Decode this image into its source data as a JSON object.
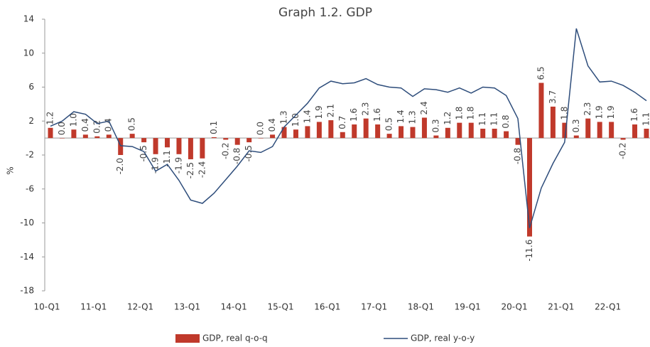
{
  "chart_data": {
    "type": "bar_line",
    "title": "Graph 1.2. GDP",
    "ylabel": "%",
    "categories": [
      "10-Q1",
      null,
      null,
      null,
      "11-Q1",
      null,
      null,
      null,
      "12-Q1",
      null,
      null,
      null,
      "13-Q1",
      null,
      null,
      null,
      "14-Q1",
      null,
      null,
      null,
      "15-Q1",
      null,
      null,
      null,
      "16-Q1",
      null,
      null,
      null,
      "17-Q1",
      null,
      null,
      null,
      "18-Q1",
      null,
      null,
      null,
      "19-Q1",
      null,
      null,
      null,
      "20-Q1",
      null,
      null,
      null,
      "21-Q1",
      null,
      null,
      null,
      "22-Q1",
      null,
      null,
      null
    ],
    "ylim": [
      -18,
      14
    ],
    "yticks": [
      14,
      10,
      6,
      2,
      -2,
      -6,
      -10,
      -14,
      -18
    ],
    "legend": "bottom",
    "series": [
      {
        "name": "GDP, real q-o-q",
        "type": "bar",
        "color": "#c0392b",
        "values": [
          1.2,
          0.0,
          1.0,
          0.4,
          0.2,
          0.4,
          -2.0,
          0.5,
          -0.5,
          -1.9,
          -1.1,
          -1.9,
          -2.5,
          -2.4,
          0.1,
          -0.2,
          -0.8,
          -0.5,
          0.0,
          0.4,
          1.3,
          1.0,
          1.4,
          1.9,
          2.1,
          0.7,
          1.6,
          2.3,
          1.6,
          0.5,
          1.4,
          1.3,
          2.4,
          0.3,
          1.2,
          1.8,
          1.8,
          1.1,
          1.1,
          0.8,
          -0.8,
          -11.6,
          6.5,
          3.7,
          1.8,
          0.3,
          2.3,
          1.9,
          1.9,
          -0.2,
          1.6,
          1.1
        ],
        "value_labels": [
          "1.2",
          "0.0",
          "1.0",
          "0.4",
          "0.2",
          "0.4",
          "-2.0",
          "0.5",
          "-0.5",
          "-1.9",
          "-1.1",
          "-1.9",
          "-2.5",
          "-2.4",
          "0.1",
          "-0.2",
          "-0.8",
          "-0.5",
          "0.0",
          "0.4",
          "1.3",
          "1.0",
          "1.4",
          "1.9",
          "2.1",
          "0.7",
          "1.6",
          "2.3",
          "1.6",
          "0.5",
          "1.4",
          "1.3",
          "2.4",
          "0.3",
          "1.2",
          "1.8",
          "1.8",
          "1.1",
          "1.1",
          "0.8",
          "-0.8",
          "-11.6",
          "6.5",
          "3.7",
          "1.8",
          "0.3",
          "2.3",
          "1.9",
          "1.9",
          "-0.2",
          "1.6",
          "1.1"
        ]
      },
      {
        "name": "GDP, real y-o-y",
        "type": "line",
        "color": "#2e4d7b",
        "values": [
          1.4,
          2.0,
          3.1,
          2.8,
          1.7,
          2.0,
          -0.9,
          -1.0,
          -1.6,
          -3.9,
          -3.1,
          -5.0,
          -7.3,
          -7.7,
          -6.5,
          -4.9,
          -3.3,
          -1.5,
          -1.7,
          -1.0,
          1.3,
          2.7,
          4.1,
          5.9,
          6.7,
          6.4,
          6.5,
          7.0,
          6.3,
          6.0,
          5.9,
          4.9,
          5.8,
          5.7,
          5.4,
          5.9,
          5.3,
          6.0,
          5.9,
          5.0,
          2.3,
          -10.6,
          -5.9,
          -3.0,
          -0.5,
          12.9,
          8.5,
          6.6,
          6.7,
          6.2,
          5.4,
          4.4
        ]
      }
    ]
  }
}
